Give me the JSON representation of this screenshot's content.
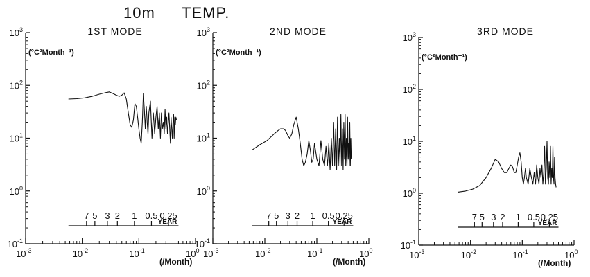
{
  "figure": {
    "depth_label": "10m",
    "variable_label": "TEMP."
  },
  "chart_data": [
    {
      "type": "line",
      "title": "1ST MODE",
      "ylabel": "(°C²Month⁻¹)",
      "xlabel": "(/Month)",
      "xscale": "log",
      "yscale": "log",
      "xlim": [
        0.001,
        1
      ],
      "ylim": [
        0.1,
        1000
      ],
      "x_tick_labels": [
        "10⁻³",
        "10⁻²",
        "10⁻¹",
        "10⁰"
      ],
      "y_tick_labels": [
        "10⁻¹",
        "10⁰",
        "10¹",
        "10²",
        "10³"
      ],
      "period_axis": {
        "label": "YEAR",
        "ticks": [
          "7",
          "5",
          "3",
          "2",
          "1",
          "0.5",
          "0.25"
        ],
        "tick_freq": [
          0.0119,
          0.0167,
          0.0278,
          0.0417,
          0.0833,
          0.1667,
          0.3333
        ]
      },
      "series": [
        {
          "x": [
            0.0057,
            0.008,
            0.011,
            0.015,
            0.02,
            0.025,
            0.03,
            0.035,
            0.04,
            0.045,
            0.05,
            0.055,
            0.06,
            0.065,
            0.07,
            0.075,
            0.08,
            0.085,
            0.09,
            0.095,
            0.1,
            0.105,
            0.11,
            0.115,
            0.12,
            0.125,
            0.13,
            0.135,
            0.14,
            0.145,
            0.15,
            0.16,
            0.17,
            0.18,
            0.19,
            0.2,
            0.21,
            0.22,
            0.23,
            0.24,
            0.25,
            0.26,
            0.27,
            0.28,
            0.29,
            0.3,
            0.31,
            0.32,
            0.33,
            0.34,
            0.35,
            0.36,
            0.37,
            0.38,
            0.39,
            0.4,
            0.41,
            0.42,
            0.43,
            0.44,
            0.45,
            0.46
          ],
          "y": [
            55,
            56,
            58,
            62,
            68,
            72,
            75,
            70,
            65,
            62,
            65,
            72,
            55,
            30,
            18,
            16,
            22,
            45,
            40,
            25,
            15,
            10,
            8,
            20,
            70,
            35,
            15,
            40,
            20,
            12,
            30,
            50,
            10,
            30,
            12,
            25,
            40,
            15,
            30,
            10,
            30,
            15,
            20,
            12,
            35,
            15,
            25,
            12,
            20,
            30,
            15,
            8,
            25,
            15,
            10,
            20,
            28,
            10,
            25,
            18,
            25,
            22
          ]
        }
      ]
    },
    {
      "type": "line",
      "title": "2ND MODE",
      "ylabel": "(°C²Month⁻¹)",
      "xlabel": "(/Month)",
      "xscale": "log",
      "yscale": "log",
      "xlim": [
        0.001,
        1
      ],
      "ylim": [
        0.1,
        1000
      ],
      "x_tick_labels": [
        "10⁻³",
        "10⁻²",
        "10⁻¹",
        "10⁰"
      ],
      "y_tick_labels": [
        "10⁻¹",
        "10⁰",
        "10¹",
        "10²",
        "10³"
      ],
      "period_axis": {
        "label": "YEAR",
        "ticks": [
          "7",
          "5",
          "3",
          "2",
          "1",
          "0.5",
          "0.25"
        ],
        "tick_freq": [
          0.0119,
          0.0167,
          0.0278,
          0.0417,
          0.0833,
          0.1667,
          0.3333
        ]
      },
      "series": [
        {
          "x": [
            0.0057,
            0.008,
            0.011,
            0.015,
            0.018,
            0.02,
            0.023,
            0.025,
            0.028,
            0.03,
            0.033,
            0.036,
            0.04,
            0.044,
            0.048,
            0.052,
            0.056,
            0.06,
            0.065,
            0.07,
            0.075,
            0.08,
            0.085,
            0.09,
            0.1,
            0.11,
            0.12,
            0.13,
            0.14,
            0.15,
            0.16,
            0.17,
            0.18,
            0.19,
            0.2,
            0.21,
            0.22,
            0.23,
            0.24,
            0.25,
            0.26,
            0.27,
            0.28,
            0.29,
            0.3,
            0.31,
            0.32,
            0.33,
            0.34,
            0.35,
            0.36,
            0.37,
            0.38,
            0.39,
            0.4,
            0.41,
            0.42,
            0.43,
            0.44,
            0.45,
            0.46
          ],
          "y": [
            6,
            7.5,
            9,
            12,
            14,
            15,
            15,
            14,
            11,
            10,
            12,
            18,
            25,
            15,
            8,
            4,
            3,
            3.5,
            5,
            9,
            6,
            3.5,
            4,
            8,
            4,
            3,
            9,
            4,
            3,
            7,
            3,
            8,
            2.5,
            10,
            3,
            20,
            3,
            15,
            2.5,
            25,
            3,
            10,
            3,
            28,
            3,
            15,
            2.5,
            20,
            4,
            28,
            3,
            10,
            3,
            25,
            4,
            8,
            3,
            20,
            3,
            10,
            4
          ]
        }
      ]
    },
    {
      "type": "line",
      "title": "3RD MODE",
      "ylabel": "(°C²Month⁻¹)",
      "xlabel": "(/Month)",
      "xscale": "log",
      "yscale": "log",
      "xlim": [
        0.001,
        1
      ],
      "ylim": [
        0.1,
        1000
      ],
      "x_tick_labels": [
        "10⁻³",
        "10⁻²",
        "10⁻¹",
        "10⁰"
      ],
      "y_tick_labels": [
        "10⁻¹",
        "10⁰",
        "10¹",
        "10²",
        "10³"
      ],
      "period_axis": {
        "label": "YEAR",
        "ticks": [
          "7",
          "5",
          "3",
          "2",
          "1",
          "0.5",
          "0.25"
        ],
        "tick_freq": [
          0.0119,
          0.0167,
          0.0278,
          0.0417,
          0.0833,
          0.1667,
          0.3333
        ]
      },
      "series": [
        {
          "x": [
            0.0057,
            0.008,
            0.011,
            0.015,
            0.02,
            0.025,
            0.03,
            0.035,
            0.04,
            0.045,
            0.05,
            0.055,
            0.06,
            0.065,
            0.07,
            0.075,
            0.08,
            0.085,
            0.09,
            0.095,
            0.1,
            0.105,
            0.11,
            0.115,
            0.12,
            0.13,
            0.14,
            0.15,
            0.16,
            0.17,
            0.18,
            0.19,
            0.2,
            0.21,
            0.22,
            0.23,
            0.24,
            0.25,
            0.26,
            0.27,
            0.28,
            0.29,
            0.3,
            0.31,
            0.32,
            0.33,
            0.34,
            0.35,
            0.36,
            0.37,
            0.38,
            0.39,
            0.4,
            0.41,
            0.42,
            0.43,
            0.44,
            0.45
          ],
          "y": [
            1.05,
            1.1,
            1.2,
            1.4,
            2,
            3,
            4.5,
            4,
            3,
            2.5,
            2.5,
            3,
            3.5,
            3.2,
            2.5,
            2.5,
            3.5,
            5,
            6,
            4,
            2,
            1.5,
            2,
            3,
            2,
            1.5,
            3,
            2,
            1.5,
            2.5,
            1.5,
            3.5,
            2,
            1.5,
            3,
            2,
            3.5,
            1.5,
            2.5,
            8,
            1.5,
            3,
            10,
            2,
            1.5,
            4,
            2,
            8,
            1.5,
            3,
            2,
            8,
            2,
            1.5,
            5,
            2,
            1.5,
            1.3
          ]
        }
      ]
    }
  ]
}
